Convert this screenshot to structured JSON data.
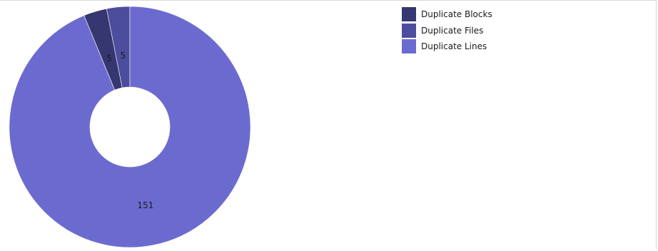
{
  "chart_data": {
    "type": "pie",
    "variant": "donut",
    "title": "",
    "legend_position": "top-right",
    "series": [
      {
        "name": "Duplicate Blocks",
        "value": 5,
        "color": "#363670"
      },
      {
        "name": "Duplicate Files",
        "value": 5,
        "color": "#4d4d9e"
      },
      {
        "name": "Duplicate Lines",
        "value": 151,
        "color": "#6b6bcf"
      }
    ]
  }
}
